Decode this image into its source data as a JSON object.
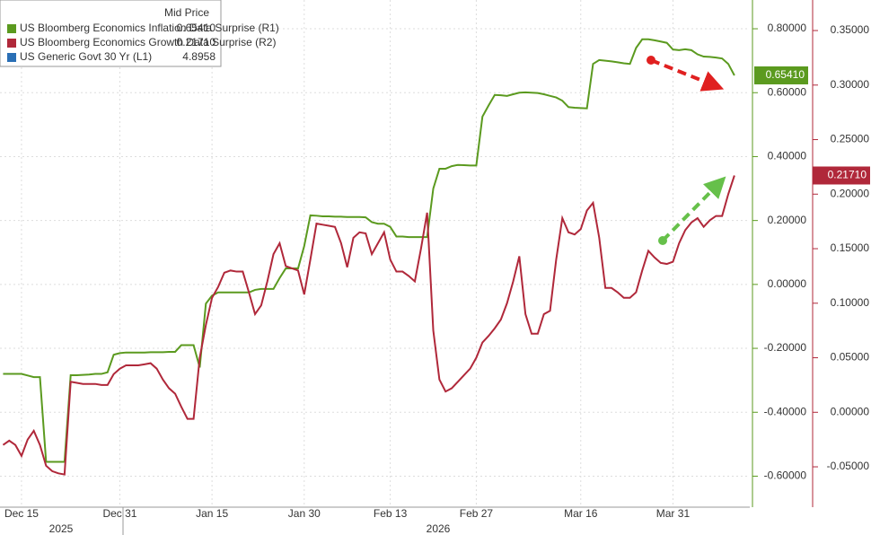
{
  "chart_data": {
    "type": "line",
    "legend_title": "Mid Price",
    "categories": [
      null,
      null,
      null,
      "Dec 15",
      null,
      null,
      null,
      null,
      null,
      null,
      null,
      null,
      null,
      null,
      null,
      null,
      null,
      null,
      null,
      "Dec 31",
      null,
      null,
      null,
      null,
      null,
      null,
      null,
      null,
      null,
      null,
      null,
      null,
      null,
      null,
      "Jan 15",
      null,
      null,
      null,
      null,
      null,
      null,
      null,
      null,
      null,
      null,
      null,
      null,
      null,
      null,
      "Jan 30",
      null,
      null,
      null,
      null,
      null,
      null,
      null,
      null,
      null,
      null,
      null,
      null,
      null,
      "Feb 13",
      null,
      null,
      null,
      null,
      null,
      null,
      null,
      null,
      null,
      null,
      null,
      null,
      null,
      "Feb 27",
      null,
      null,
      null,
      null,
      null,
      null,
      null,
      null,
      null,
      null,
      null,
      null,
      null,
      null,
      null,
      null,
      "Mar 16",
      null,
      null,
      null,
      null,
      null,
      null,
      null,
      null,
      null,
      null,
      null,
      null,
      null,
      null,
      "Mar 31",
      null,
      null,
      null,
      null,
      null,
      null,
      null,
      null,
      null,
      null,
      null,
      null
    ],
    "annotations": [
      "2025",
      "2026"
    ],
    "series": [
      {
        "name": "US Bloomberg Economics Inflation Data Surprise  (R1)",
        "color": "#5b9a1f",
        "last": {
          "value": 0.6541,
          "label": "0.65410"
        },
        "values": [
          -0.28,
          -0.28,
          -0.28,
          -0.28,
          -0.285,
          -0.29,
          -0.29,
          -0.555,
          -0.555,
          -0.555,
          -0.555,
          -0.284,
          -0.284,
          -0.283,
          -0.282,
          -0.28,
          -0.28,
          -0.275,
          -0.22,
          -0.215,
          -0.213,
          -0.213,
          -0.213,
          -0.213,
          -0.212,
          -0.212,
          -0.212,
          -0.211,
          -0.211,
          -0.19,
          -0.19,
          -0.19,
          -0.26,
          -0.06,
          -0.035,
          -0.025,
          -0.025,
          -0.025,
          -0.025,
          -0.025,
          -0.025,
          -0.017,
          -0.014,
          -0.014,
          -0.014,
          0.02,
          0.05,
          0.05,
          0.05,
          0.12,
          0.216,
          0.215,
          0.213,
          0.213,
          0.212,
          0.212,
          0.211,
          0.211,
          0.211,
          0.21,
          0.195,
          0.19,
          0.19,
          0.18,
          0.15,
          0.15,
          0.148,
          0.148,
          0.148,
          0.148,
          0.3,
          0.362,
          0.362,
          0.37,
          0.374,
          0.373,
          0.372,
          0.372,
          0.525,
          0.56,
          0.593,
          0.592,
          0.59,
          0.595,
          0.6,
          0.601,
          0.6,
          0.599,
          0.595,
          0.59,
          0.585,
          0.575,
          0.555,
          0.553,
          0.552,
          0.551,
          0.69,
          0.702,
          0.7,
          0.698,
          0.695,
          0.692,
          0.69,
          0.74,
          0.767,
          0.767,
          0.764,
          0.76,
          0.756,
          0.735,
          0.733,
          0.736,
          0.733,
          0.72,
          0.713,
          0.712,
          0.71,
          0.707,
          0.69,
          0.6541,
          null,
          null
        ]
      },
      {
        "name": "US Bloomberg Economics Growth Data Surprise  (R2)",
        "color": "#b0283a",
        "axis": "y2",
        "last": {
          "value": 0.2171,
          "label": "0.21710"
        },
        "values": [
          -0.03,
          -0.026,
          -0.03,
          -0.04,
          -0.025,
          -0.017,
          -0.03,
          -0.049,
          -0.054,
          -0.056,
          -0.057,
          0.028,
          0.027,
          0.026,
          0.026,
          0.026,
          0.025,
          0.025,
          0.035,
          0.04,
          0.043,
          0.043,
          0.043,
          0.044,
          0.045,
          0.04,
          0.03,
          0.022,
          0.017,
          0.005,
          -0.006,
          -0.006,
          0.05,
          0.08,
          0.105,
          0.115,
          0.128,
          0.13,
          0.129,
          0.129,
          0.11,
          0.09,
          0.098,
          0.12,
          0.145,
          0.155,
          0.134,
          0.132,
          0.13,
          0.108,
          0.14,
          0.173,
          0.172,
          0.171,
          0.17,
          0.155,
          0.133,
          0.16,
          0.165,
          0.164,
          0.145,
          0.155,
          0.165,
          0.14,
          0.129,
          0.129,
          0.125,
          0.12,
          0.15,
          0.183,
          0.075,
          0.03,
          0.019,
          0.022,
          0.028,
          0.034,
          0.04,
          0.05,
          0.064,
          0.07,
          0.077,
          0.085,
          0.1,
          0.12,
          0.143,
          0.09,
          0.072,
          0.072,
          0.09,
          0.093,
          0.14,
          0.178,
          0.165,
          0.163,
          0.168,
          0.185,
          0.192,
          0.16,
          0.114,
          0.114,
          0.11,
          0.105,
          0.105,
          0.11,
          0.13,
          0.148,
          0.142,
          0.137,
          0.136,
          0.138,
          0.155,
          0.167,
          0.174,
          0.178,
          0.17,
          0.176,
          0.18,
          0.18,
          0.2,
          0.2171,
          null,
          null
        ]
      },
      {
        "name": "US Generic Govt 30 Yr  (L1)",
        "color": "#2a6fb5",
        "last": 4.8958
      }
    ],
    "ylim": [
      -0.697,
      0.89
    ],
    "yticks": [
      {
        "value": 0.8,
        "label": "0.80000"
      },
      {
        "value": 0.6,
        "label": "0.60000"
      },
      {
        "value": 0.4,
        "label": "0.40000"
      },
      {
        "value": 0.2,
        "label": "0.20000"
      },
      {
        "value": 0,
        "label": "0.00000"
      },
      {
        "value": -0.2,
        "label": "-0.20000"
      },
      {
        "value": -0.4,
        "label": "-0.40000"
      },
      {
        "value": -0.6,
        "label": "-0.60000"
      }
    ],
    "y2lim": [
      -0.087,
      0.378
    ],
    "y2ticks": [
      {
        "value": 0.35,
        "label": "0.35000"
      },
      {
        "value": 0.3,
        "label": "0.30000"
      },
      {
        "value": 0.25,
        "label": "0.25000"
      },
      {
        "value": 0.2,
        "label": "0.20000"
      },
      {
        "value": 0.15,
        "label": "0.15000"
      },
      {
        "value": 0.1,
        "label": "0.10000"
      },
      {
        "value": 0.05,
        "label": "0.05000"
      },
      {
        "value": 0,
        "label": "0.00000"
      },
      {
        "value": -0.05,
        "label": "-0.05000"
      }
    ],
    "grid": true
  }
}
